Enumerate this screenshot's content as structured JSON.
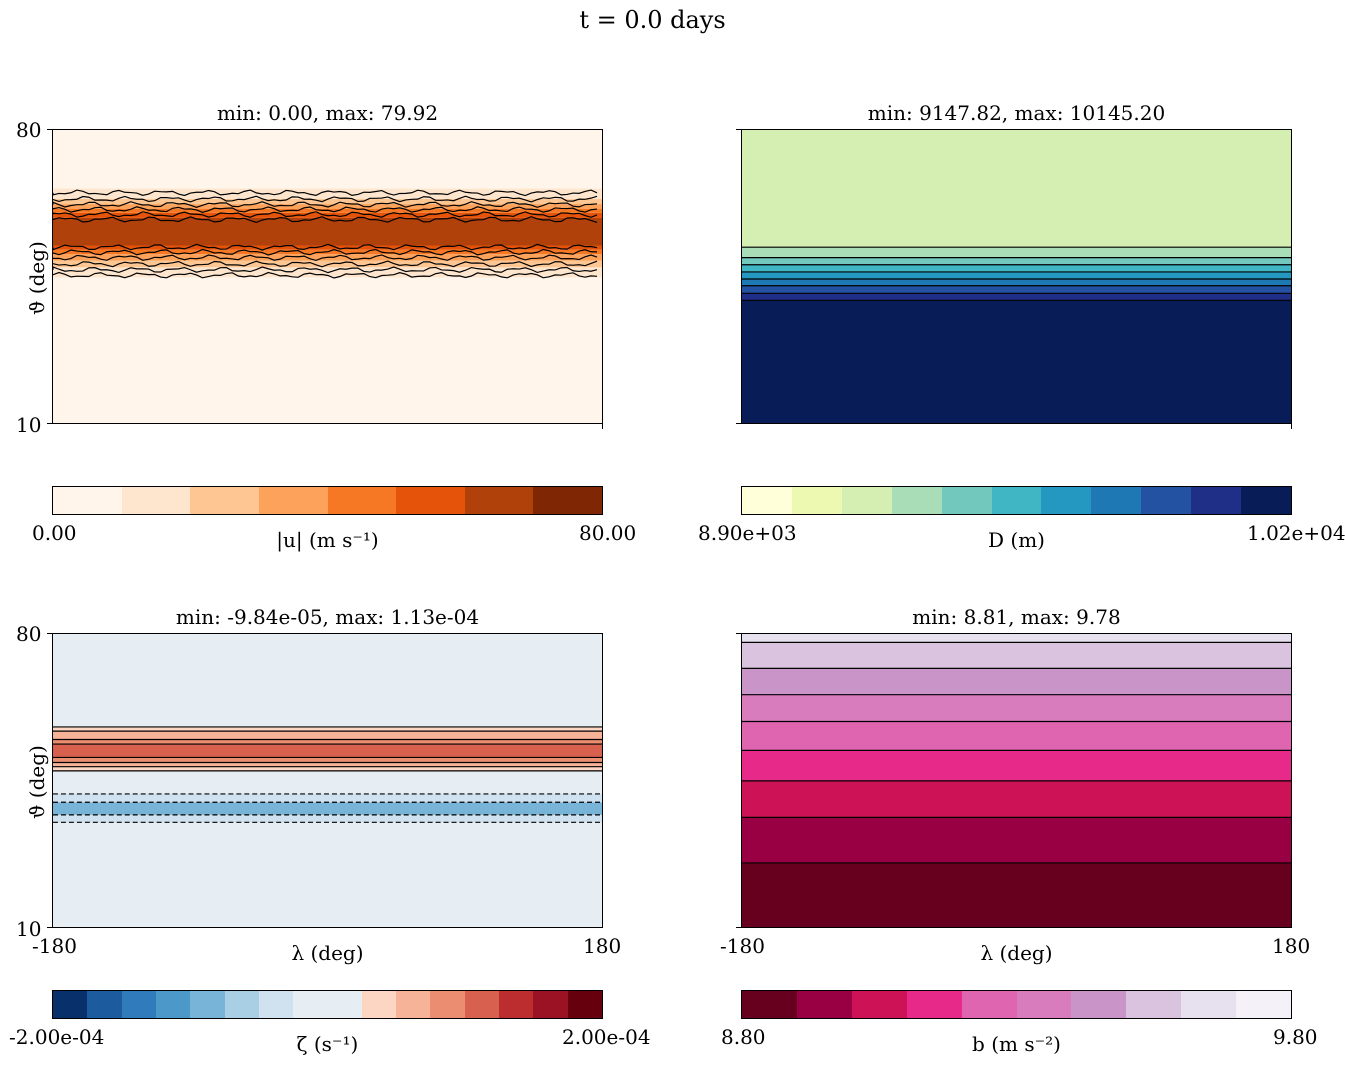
{
  "figure_title": "t = 0.0 days",
  "chart_data": [
    {
      "type": "heatmap",
      "id": "panel-wind-speed",
      "title": "min: 0.00, max: 79.92",
      "ylabel": "ϑ (deg)",
      "xlabel": "",
      "y_ticks": [
        "80",
        "10"
      ],
      "x_ticks": [],
      "xlim": [
        -180,
        180
      ],
      "ylim": [
        10,
        80
      ],
      "colorbar": {
        "label": "|u| (m s⁻¹)",
        "min_label": "0.00",
        "max_label": "80.00",
        "range": [
          0,
          80
        ],
        "colors": [
          "#fff5eb",
          "#fee6ce",
          "#fdc692",
          "#fda25a",
          "#f67824",
          "#e45309",
          "#b0410a",
          "#7f2704"
        ]
      },
      "bands": [
        {
          "lat": [
            10,
            80
          ],
          "value": 0,
          "color_index": 0
        },
        {
          "lat": [
            44.8,
            47.2
          ],
          "value": 10,
          "color_index": 1
        },
        {
          "lat": [
            47.2,
            48.8
          ],
          "value": 20,
          "color_index": 2
        },
        {
          "lat": [
            48.8,
            50.3
          ],
          "value": 30,
          "color_index": 3
        },
        {
          "lat": [
            50.3,
            51.4
          ],
          "value": 40,
          "color_index": 4
        },
        {
          "lat": [
            51.4,
            52.4
          ],
          "value": 50,
          "color_index": 5
        },
        {
          "lat": [
            52.4,
            59.0
          ],
          "value": 60,
          "color_index": 6
        },
        {
          "lat": [
            59.0,
            60.2
          ],
          "value": 50,
          "color_index": 5
        },
        {
          "lat": [
            60.2,
            61.2
          ],
          "value": 40,
          "color_index": 4
        },
        {
          "lat": [
            61.2,
            62.3
          ],
          "value": 30,
          "color_index": 3
        },
        {
          "lat": [
            62.3,
            63.5
          ],
          "value": 20,
          "color_index": 2
        },
        {
          "lat": [
            63.5,
            66.0
          ],
          "value": 10,
          "color_index": 1
        }
      ],
      "contour_lats": [
        45.3,
        46.6,
        48.0,
        49.5,
        50.8,
        52.0,
        58.6,
        59.8,
        61.0,
        62.2,
        63.5,
        65.0
      ],
      "dashed_contour_lats": [],
      "wavy": true
    },
    {
      "type": "heatmap",
      "id": "panel-depth",
      "title": "min: 9147.82, max: 10145.20",
      "ylabel": "",
      "xlabel": "",
      "y_ticks": [],
      "x_ticks": [],
      "xlim": [
        -180,
        180
      ],
      "ylim": [
        10,
        80
      ],
      "colorbar": {
        "label": "D (m)",
        "min_label": "8.90e+03",
        "max_label": "1.02e+04",
        "range": [
          8900,
          10200
        ],
        "colors": [
          "#ffffd9",
          "#edf8b1",
          "#d5efb3",
          "#a9ddb7",
          "#73c8bd",
          "#40b5c4",
          "#2498c1",
          "#1e78b4",
          "#2352a3",
          "#1f2f88",
          "#081d58"
        ]
      },
      "bands": [
        {
          "lat": [
            10,
            39.3
          ],
          "value": 10100,
          "color_index": 10
        },
        {
          "lat": [
            39.3,
            41.0
          ],
          "value": 10000,
          "color_index": 9
        },
        {
          "lat": [
            41.0,
            42.8
          ],
          "value": 9950,
          "color_index": 8
        },
        {
          "lat": [
            42.8,
            44.4
          ],
          "value": 9850,
          "color_index": 7
        },
        {
          "lat": [
            44.4,
            46.1
          ],
          "value": 9750,
          "color_index": 6
        },
        {
          "lat": [
            46.1,
            47.8
          ],
          "value": 9600,
          "color_index": 5
        },
        {
          "lat": [
            47.8,
            49.5
          ],
          "value": 9500,
          "color_index": 4
        },
        {
          "lat": [
            49.5,
            52.0
          ],
          "value": 9400,
          "color_index": 3
        },
        {
          "lat": [
            52.0,
            80.0
          ],
          "value": 9300,
          "color_index": 2
        }
      ],
      "contour_lats": [
        39.3,
        41.0,
        42.8,
        44.4,
        46.1,
        47.8,
        49.5,
        52.0
      ],
      "dashed_contour_lats": [],
      "wavy": false
    },
    {
      "type": "heatmap",
      "id": "panel-vorticity",
      "title": "min: -9.84e-05, max: 1.13e-04",
      "ylabel": "ϑ (deg)",
      "xlabel": "λ (deg)",
      "y_ticks": [
        "80",
        "10"
      ],
      "x_ticks": [
        "-180",
        "180"
      ],
      "xlim": [
        -180,
        180
      ],
      "ylim": [
        10,
        80
      ],
      "colorbar": {
        "label": "ζ (s⁻¹)",
        "min_label": "-2.00e-04",
        "max_label": "2.00e-04",
        "range": [
          -0.0002,
          0.0002
        ],
        "colors": [
          "#08306b",
          "#1c5b9e",
          "#2f7bbc",
          "#4b98c9",
          "#77b4d8",
          "#a9cfe5",
          "#d0e2f0",
          "#e7eef3",
          "#e7eef3",
          "#fdd6c3",
          "#f6b398",
          "#ea8d70",
          "#d8604f",
          "#bb2d2f",
          "#9a1224",
          "#67000d"
        ]
      },
      "bands": [
        {
          "lat": [
            10,
            80
          ],
          "value": 0,
          "color_index": 7
        },
        {
          "lat": [
            35.0,
            36.8
          ],
          "value": -2.5e-05,
          "color_index": 6
        },
        {
          "lat": [
            36.8,
            39.8
          ],
          "value": -5e-05,
          "color_index": 4
        },
        {
          "lat": [
            39.8,
            41.8
          ],
          "value": -2.5e-05,
          "color_index": 6
        },
        {
          "lat": [
            47.3,
            48.3
          ],
          "value": 2.5e-05,
          "color_index": 9
        },
        {
          "lat": [
            48.3,
            49.3
          ],
          "value": 5e-05,
          "color_index": 10
        },
        {
          "lat": [
            49.3,
            50.5
          ],
          "value": 7.5e-05,
          "color_index": 11
        },
        {
          "lat": [
            50.5,
            53.7
          ],
          "value": 0.0001,
          "color_index": 12
        },
        {
          "lat": [
            53.7,
            54.8
          ],
          "value": 7.5e-05,
          "color_index": 11
        },
        {
          "lat": [
            54.8,
            56.8
          ],
          "value": 5e-05,
          "color_index": 10
        },
        {
          "lat": [
            56.8,
            57.8
          ],
          "value": 2.5e-05,
          "color_index": 9
        }
      ],
      "contour_lats": [
        47.3,
        48.3,
        49.3,
        50.5,
        53.7,
        54.8,
        56.8,
        57.8
      ],
      "dashed_contour_lats": [
        35.0,
        36.8,
        39.8,
        41.8
      ],
      "wavy": false
    },
    {
      "type": "heatmap",
      "id": "panel-buoyancy",
      "title": "min: 8.81, max: 9.78",
      "ylabel": "",
      "xlabel": "λ (deg)",
      "y_ticks": [],
      "x_ticks": [
        "-180",
        "180"
      ],
      "xlim": [
        -180,
        180
      ],
      "ylim": [
        10,
        80
      ],
      "colorbar": {
        "label": "b (m s⁻²)",
        "min_label": "8.80",
        "max_label": "9.80",
        "range": [
          8.8,
          9.8
        ],
        "colors": [
          "#67001f",
          "#980043",
          "#ce1256",
          "#e7298a",
          "#df65b0",
          "#d87cbd",
          "#c994c7",
          "#d9c3df",
          "#e7e1ef",
          "#f4f2f8"
        ]
      },
      "bands": [
        {
          "lat": [
            10,
            25.3
          ],
          "value": 8.85,
          "color_index": 0
        },
        {
          "lat": [
            25.3,
            36.2
          ],
          "value": 8.95,
          "color_index": 1
        },
        {
          "lat": [
            36.2,
            44.9
          ],
          "value": 9.05,
          "color_index": 2
        },
        {
          "lat": [
            44.9,
            52.2
          ],
          "value": 9.15,
          "color_index": 3
        },
        {
          "lat": [
            52.2,
            59.1
          ],
          "value": 9.25,
          "color_index": 4
        },
        {
          "lat": [
            59.1,
            65.5
          ],
          "value": 9.35,
          "color_index": 5
        },
        {
          "lat": [
            65.5,
            71.8
          ],
          "value": 9.45,
          "color_index": 6
        },
        {
          "lat": [
            71.8,
            78.0
          ],
          "value": 9.55,
          "color_index": 7
        },
        {
          "lat": [
            78.0,
            80.0
          ],
          "value": 9.65,
          "color_index": 8
        }
      ],
      "contour_lats": [
        25.3,
        36.2,
        44.9,
        52.2,
        59.1,
        65.5,
        71.8,
        78.0
      ],
      "dashed_contour_lats": [],
      "wavy": false
    }
  ]
}
